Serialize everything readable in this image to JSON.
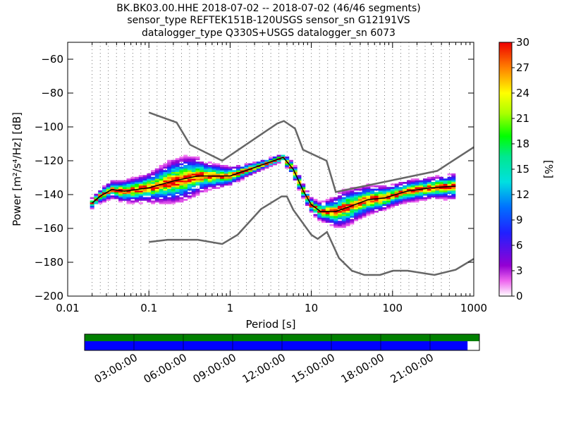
{
  "title_lines": [
    "BK.BK03.00.HHE   2018-07-02 -- 2018-07-02  (46/46 segments)",
    "sensor_type REFTEK151B-120USGS sensor_sn G12191VS",
    "datalogger_type Q330S+USGS datalogger_sn 6073"
  ],
  "chart_data": {
    "type": "heatmap",
    "xlabel": "Period [s]",
    "ylabel": "Power [m²/s⁴/Hz] [dB]",
    "xscale": "log",
    "xlim": [
      0.01,
      1000
    ],
    "ylim": [
      -200,
      -50
    ],
    "xticks": [
      {
        "value": 0.01,
        "label": "0.01"
      },
      {
        "value": 0.1,
        "label": "0.1"
      },
      {
        "value": 1,
        "label": "1"
      },
      {
        "value": 10,
        "label": "10"
      },
      {
        "value": 100,
        "label": "100"
      },
      {
        "value": 1000,
        "label": "1000"
      }
    ],
    "yticks": [
      {
        "value": -60,
        "label": "−60"
      },
      {
        "value": -80,
        "label": "−80"
      },
      {
        "value": -100,
        "label": "−100"
      },
      {
        "value": -120,
        "label": "−120"
      },
      {
        "value": -140,
        "label": "−140"
      },
      {
        "value": -160,
        "label": "−160"
      },
      {
        "value": -180,
        "label": "−180"
      },
      {
        "value": -200,
        "label": "−200"
      }
    ],
    "grid": "dotted vertical lines at period bins",
    "colorbar": {
      "label": "[%]",
      "range": [
        0,
        30
      ],
      "ticks": [
        "0",
        "3",
        "6",
        "9",
        "12",
        "15",
        "18",
        "21",
        "24",
        "27",
        "30"
      ]
    },
    "high_noise_model": [
      [
        0.1,
        -91.5
      ],
      [
        0.22,
        -97.4
      ],
      [
        0.32,
        -110.5
      ],
      [
        0.8,
        -120
      ],
      [
        3.8,
        -98
      ],
      [
        4.6,
        -96.5
      ],
      [
        6.3,
        -101
      ],
      [
        7.9,
        -113.5
      ],
      [
        15.4,
        -120
      ],
      [
        20,
        -138.5
      ],
      [
        354.8,
        -126
      ],
      [
        1000,
        -112
      ]
    ],
    "low_noise_model": [
      [
        0.1,
        -168
      ],
      [
        0.17,
        -166.7
      ],
      [
        0.4,
        -166.7
      ],
      [
        0.8,
        -169.2
      ],
      [
        1.24,
        -163.7
      ],
      [
        2.4,
        -148.6
      ],
      [
        4.3,
        -141.1
      ],
      [
        5.0,
        -141.1
      ],
      [
        6.0,
        -149
      ],
      [
        10,
        -163.8
      ],
      [
        12,
        -166.2
      ],
      [
        15.6,
        -162.1
      ],
      [
        21.9,
        -177.5
      ],
      [
        31.6,
        -185
      ],
      [
        45,
        -187.5
      ],
      [
        70,
        -187.5
      ],
      [
        101,
        -185
      ],
      [
        154,
        -185
      ],
      [
        328,
        -187.5
      ],
      [
        600,
        -184.4
      ],
      [
        1000,
        -178
      ]
    ],
    "mean_curve": [
      [
        0.02,
        -145
      ],
      [
        0.025,
        -141
      ],
      [
        0.035,
        -137
      ],
      [
        0.05,
        -138
      ],
      [
        0.1,
        -136
      ],
      [
        0.2,
        -132
      ],
      [
        0.4,
        -129
      ],
      [
        1,
        -129
      ],
      [
        2,
        -124
      ],
      [
        3,
        -121
      ],
      [
        4.5,
        -118
      ],
      [
        6,
        -125
      ],
      [
        8,
        -138
      ],
      [
        10,
        -146
      ],
      [
        13,
        -150
      ],
      [
        20,
        -150
      ],
      [
        30,
        -147
      ],
      [
        50,
        -143
      ],
      [
        80,
        -142
      ],
      [
        150,
        -138
      ],
      [
        300,
        -136
      ],
      [
        600,
        -135
      ]
    ],
    "scatter_half_width_db": [
      [
        0.02,
        3
      ],
      [
        0.05,
        6
      ],
      [
        0.1,
        8
      ],
      [
        0.2,
        12
      ],
      [
        0.3,
        12
      ],
      [
        0.5,
        8
      ],
      [
        1,
        5
      ],
      [
        2,
        3
      ],
      [
        4,
        2
      ],
      [
        6,
        4
      ],
      [
        10,
        4
      ],
      [
        15,
        6
      ],
      [
        25,
        10
      ],
      [
        50,
        8
      ],
      [
        100,
        6
      ],
      [
        300,
        6
      ],
      [
        600,
        7
      ]
    ],
    "time_axis": {
      "ticks": [
        "03:00:00",
        "06:00:00",
        "09:00:00",
        "12:00:00",
        "15:00:00",
        "18:00:00",
        "21:00:00"
      ],
      "data_coverage_fraction": 0.97
    }
  },
  "colors": {
    "noise_model": "#666666",
    "mean_curve": "#000000",
    "coverage_bar": "#0000ff",
    "data_bar": "#008000"
  }
}
